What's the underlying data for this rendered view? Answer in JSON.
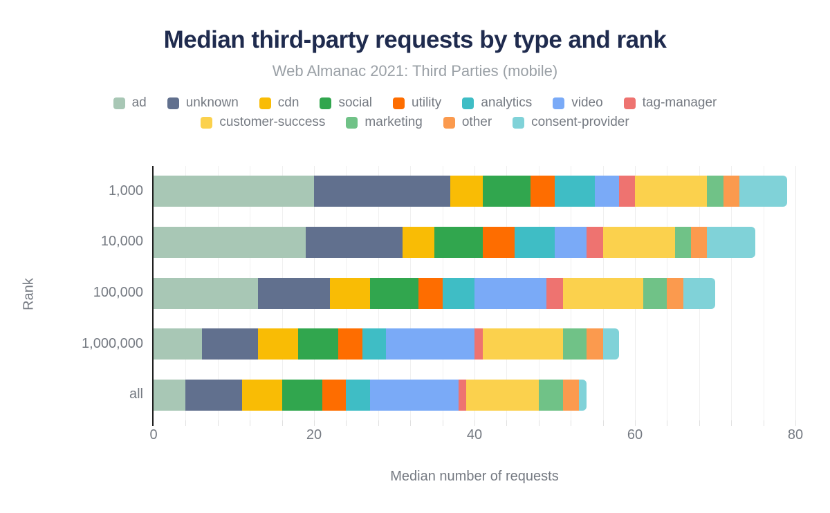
{
  "header": {
    "title": "Median third-party requests by type and rank",
    "subtitle": "Web Almanac 2021: Third Parties (mobile)"
  },
  "chart_data": {
    "type": "bar",
    "orientation": "horizontal",
    "stacked": true,
    "title": "Median third-party requests by type and rank",
    "subtitle": "Web Almanac 2021: Third Parties (mobile)",
    "xlabel": "Median number of requests",
    "ylabel": "Rank",
    "categories": [
      "1,000",
      "10,000",
      "100,000",
      "1,000,000",
      "all"
    ],
    "series": [
      {
        "name": "ad",
        "color": "#a8c7b5",
        "values": [
          20,
          19,
          13,
          6,
          4
        ]
      },
      {
        "name": "unknown",
        "color": "#61708e",
        "values": [
          17,
          12,
          9,
          7,
          7
        ]
      },
      {
        "name": "cdn",
        "color": "#f9bc05",
        "values": [
          4,
          4,
          5,
          5,
          5
        ]
      },
      {
        "name": "social",
        "color": "#31a64e",
        "values": [
          6,
          6,
          6,
          5,
          5
        ]
      },
      {
        "name": "utility",
        "color": "#fe6d00",
        "values": [
          3,
          4,
          3,
          3,
          3
        ]
      },
      {
        "name": "analytics",
        "color": "#3fbdc5",
        "values": [
          5,
          5,
          4,
          3,
          3
        ]
      },
      {
        "name": "video",
        "color": "#7aaaf7",
        "values": [
          3,
          4,
          9,
          11,
          11
        ]
      },
      {
        "name": "tag-manager",
        "color": "#ee7370",
        "values": [
          2,
          2,
          2,
          1,
          1
        ]
      },
      {
        "name": "customer-success",
        "color": "#fbd14d",
        "values": [
          9,
          9,
          10,
          10,
          9
        ]
      },
      {
        "name": "marketing",
        "color": "#70c287",
        "values": [
          2,
          2,
          3,
          3,
          3
        ]
      },
      {
        "name": "other",
        "color": "#fb9a4e",
        "values": [
          2,
          2,
          2,
          2,
          2
        ]
      },
      {
        "name": "consent-provider",
        "color": "#80d2d8",
        "values": [
          6,
          6,
          4,
          2,
          1
        ]
      }
    ],
    "bar_totals": [
      79,
      75,
      70,
      58,
      54
    ],
    "xlim": [
      0,
      80
    ],
    "x_ticks": [
      0,
      20,
      40,
      60,
      80
    ],
    "minor_grid_step": 4,
    "grid": true,
    "legend_position": "top",
    "legend_rows": [
      [
        "ad",
        "unknown",
        "cdn",
        "social",
        "utility",
        "analytics",
        "video",
        "tag-manager"
      ],
      [
        "customer-success",
        "marketing",
        "other",
        "consent-provider"
      ]
    ],
    "colors": {
      "title_text": "#1f2b4e",
      "subtitle_text": "#9aa0a6",
      "axis_text": "#757a82",
      "gridline": "#f0f0f0",
      "zero_axis": "#1c1c1c"
    }
  }
}
